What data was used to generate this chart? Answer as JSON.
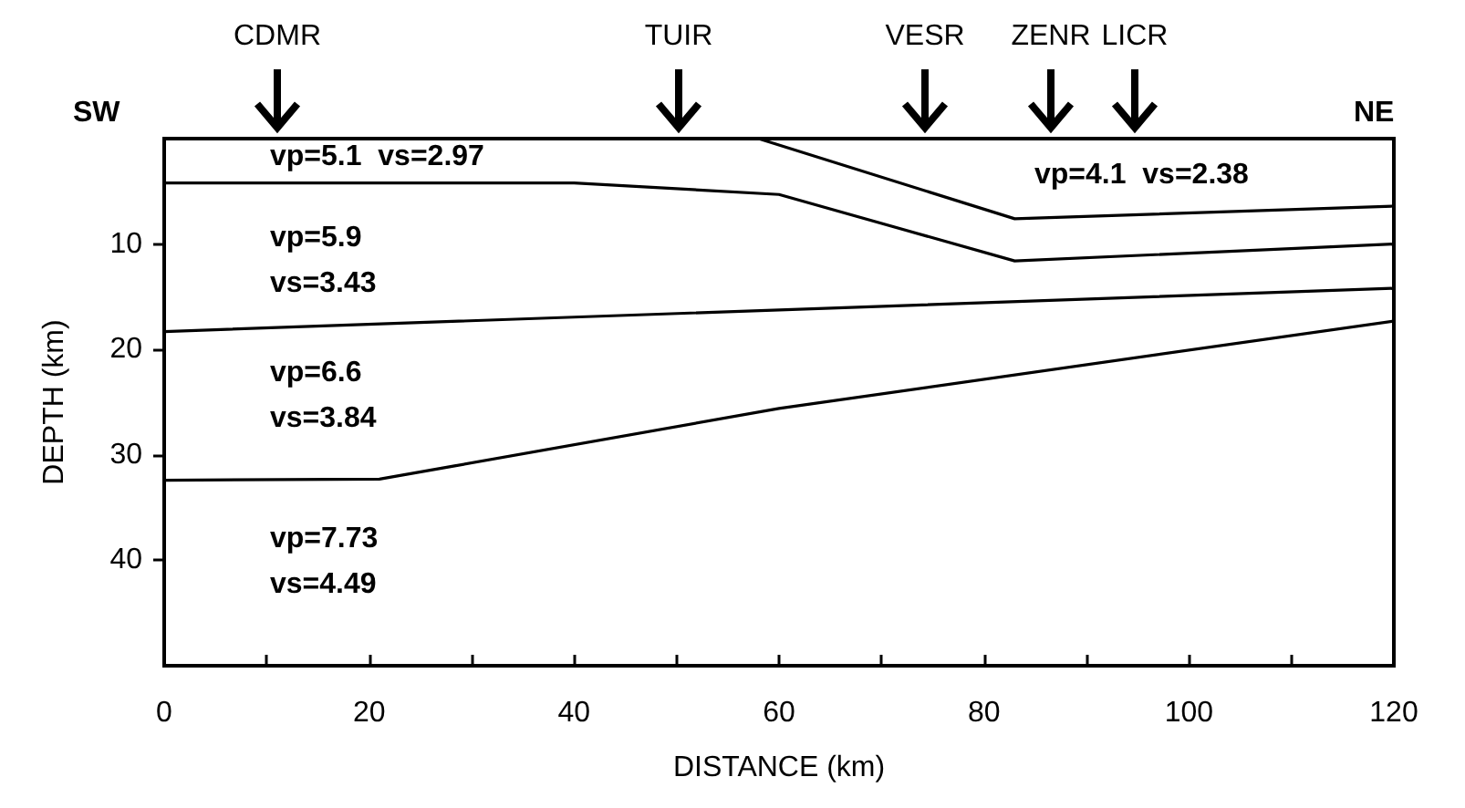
{
  "chart_data": {
    "type": "line",
    "xlabel": "DISTANCE (km)",
    "ylabel": "DEPTH (km)",
    "xlim": [
      0,
      120
    ],
    "xticks": [
      0,
      {
        "value": 10,
        "label": null
      },
      20,
      {
        "value": 30,
        "label": null
      },
      40,
      {
        "value": 50,
        "label": null
      },
      60,
      {
        "value": 70,
        "label": null
      },
      80,
      {
        "value": 90,
        "label": null
      },
      100,
      {
        "value": 110,
        "label": null
      },
      120
    ],
    "ylim": [
      50,
      0
    ],
    "yticks": [
      10,
      20,
      30,
      40
    ],
    "grid": false,
    "marker": "none",
    "line_style": "solid",
    "series": [
      {
        "color": "#000000",
        "x": [
          0,
          40,
          60,
          83,
          120
        ],
        "values": [
          4.2,
          4.2,
          5.3,
          11.6,
          10.0
        ]
      },
      {
        "color": "#000000",
        "x": [
          58,
          83,
          120
        ],
        "values": [
          0,
          7.6,
          6.4
        ]
      },
      {
        "color": "#000000",
        "x": [
          0,
          120
        ],
        "values": [
          18.3,
          14.2
        ]
      },
      {
        "color": "#000000",
        "x": [
          0,
          21,
          60,
          120
        ],
        "values": [
          32.4,
          32.3,
          25.6,
          17.3
        ]
      }
    ],
    "annotations": [
      "SW",
      "NE",
      "CDMR",
      "TUIR",
      "VESR",
      "ZENR",
      "LICR",
      "vp=5.1  vs=2.97",
      "vp=5.9\nvs=3.43",
      "vp=6.6\nvs=3.84",
      "vp=7.73\nvs=4.49",
      "vp=4.1  vs=2.38"
    ]
  }
}
